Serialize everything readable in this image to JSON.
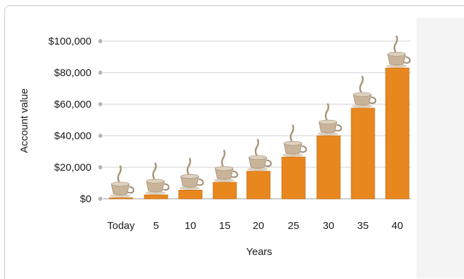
{
  "colors": {
    "bar": "#e8871e",
    "bar_edge": "#c96f12",
    "grid": "#cfcfcf",
    "tick_dot": "#b5b5b5",
    "mug": "#c9b49a",
    "panel_bg": "#ffffff"
  },
  "icons": {
    "bar_topper": "coffee-cup-icon"
  },
  "chart_data": {
    "type": "bar",
    "xlabel": "Years",
    "ylabel": "Account value",
    "categories": [
      "Today",
      "5",
      "10",
      "15",
      "20",
      "25",
      "30",
      "35",
      "40"
    ],
    "values": [
      300,
      2500,
      5500,
      10500,
      17500,
      26500,
      40000,
      57500,
      83000
    ],
    "ylim": [
      0,
      100000
    ],
    "yticks": [
      0,
      20000,
      40000,
      60000,
      80000,
      100000
    ],
    "ytick_labels": [
      "$0",
      "$20,000",
      "$40,000",
      "$60,000",
      "$80,000",
      "$100,000"
    ],
    "grid": true,
    "legend": "none"
  }
}
